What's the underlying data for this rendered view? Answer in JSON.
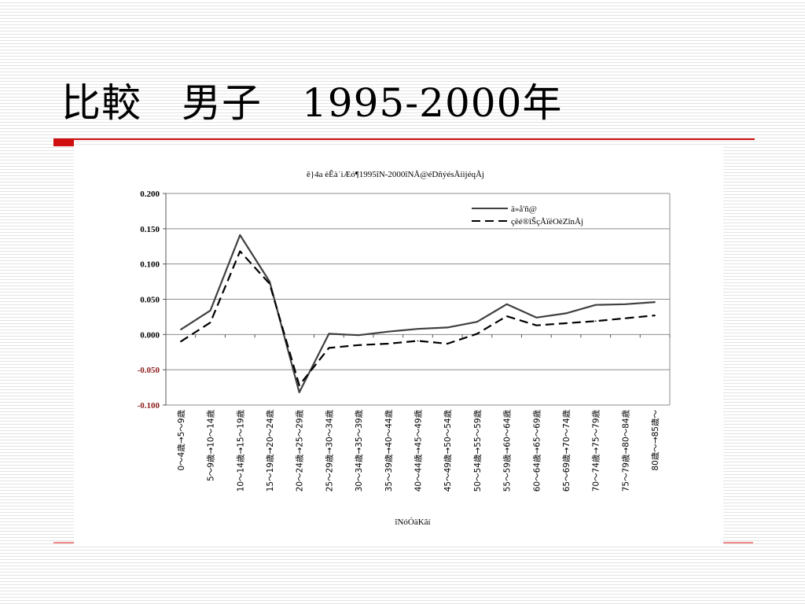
{
  "slide": {
    "title": "比較　男子　1995-2000年"
  },
  "colors": {
    "accent": "#d01010",
    "negative_tick": "#8b1a1a",
    "series_solid": "#404040",
    "series_dashed": "#000000"
  },
  "chart_data": {
    "type": "line",
    "title": "ê}4a èÊàˈiÆó¶1995îN-2000îNÅ@éDñýésÅiìjéqÅj",
    "xlabel": "îNóÓäKãí",
    "ylabel": "",
    "ylim": [
      -0.1,
      0.2
    ],
    "yticks": [
      {
        "value": 0.2,
        "label": "0.200"
      },
      {
        "value": 0.15,
        "label": "0.150"
      },
      {
        "value": 0.1,
        "label": "0.100"
      },
      {
        "value": 0.05,
        "label": "0.050"
      },
      {
        "value": 0.0,
        "label": "0.000"
      },
      {
        "value": -0.05,
        "label": "-0.050"
      },
      {
        "value": -0.1,
        "label": "-0.100"
      }
    ],
    "grid": true,
    "legend_position": "top-right",
    "categories": [
      "0〜4歳→5〜9歳",
      "5〜9歳→10〜14歳",
      "10〜14歳→15〜19歳",
      "15〜19歳→20〜24歳",
      "20〜24歳→25〜29歳",
      "25〜29歳→30〜34歳",
      "30〜34歳→35〜39歳",
      "35〜39歳→40〜44歳",
      "40〜44歳→45〜49歳",
      "45〜49歳→50〜54歳",
      "50〜54歳→55〜59歳",
      "55〜59歳→60〜64歳",
      "60〜64歳→65〜69歳",
      "65〜69歳→70〜74歳",
      "70〜74歳→75〜79歳",
      "75〜79歳→80〜84歳",
      "80歳〜→85歳〜"
    ],
    "series": [
      {
        "name": "ä»å'ñ@",
        "style": "solid",
        "values": [
          0.007,
          0.034,
          0.141,
          0.075,
          -0.082,
          0.001,
          -0.001,
          0.004,
          0.008,
          0.01,
          0.018,
          0.043,
          0.024,
          0.03,
          0.042,
          0.043,
          0.046
        ]
      },
      {
        "name": "çëé®îŠçÅïëOèZînÅj",
        "style": "dashed",
        "values": [
          -0.01,
          0.017,
          0.118,
          0.072,
          -0.072,
          -0.019,
          -0.015,
          -0.013,
          -0.009,
          -0.013,
          0.001,
          0.026,
          0.013,
          0.016,
          0.019,
          0.023,
          0.027
        ]
      }
    ]
  }
}
